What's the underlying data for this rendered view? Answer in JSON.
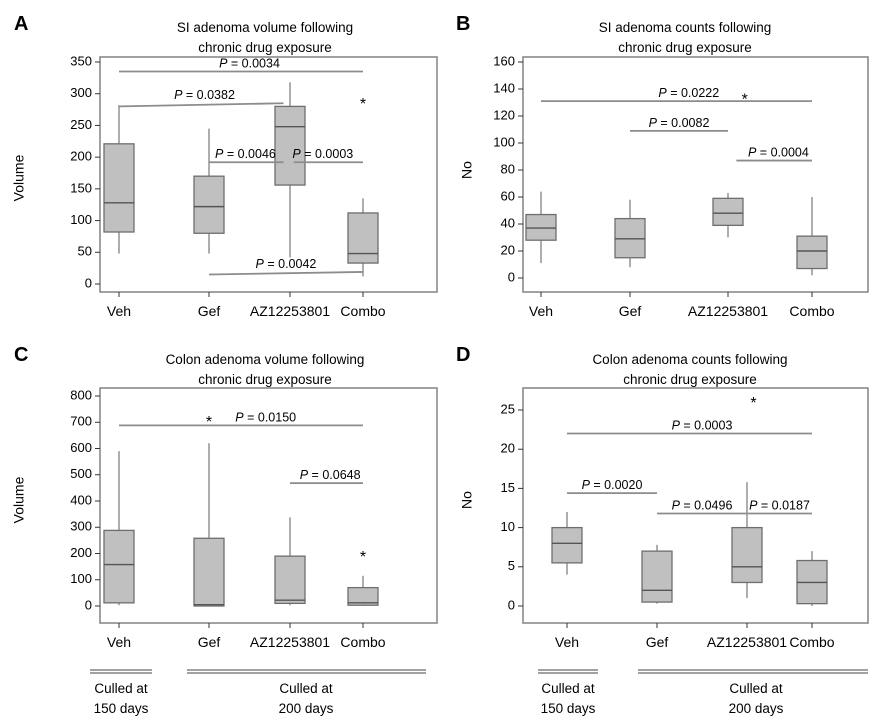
{
  "chart_data": [
    {
      "type": "box",
      "panel_label": "A",
      "title_lines": [
        "SI adenoma volume following",
        "chronic drug exposure"
      ],
      "ylabel": "Volume",
      "xlabel": "",
      "ylim": [
        0,
        350
      ],
      "yticks": [
        0,
        50,
        100,
        150,
        200,
        250,
        300,
        350
      ],
      "categories": [
        "Veh",
        "Gef",
        "AZ12253801",
        "Combo"
      ],
      "boxes": [
        {
          "min": 48,
          "q1": 82,
          "median": 128,
          "q3": 221,
          "max": 282
        },
        {
          "min": 48,
          "q1": 80,
          "median": 122,
          "q3": 170,
          "max": 245
        },
        {
          "min": 42,
          "q1": 156,
          "median": 248,
          "q3": 280,
          "max": 318
        },
        {
          "min": 12,
          "q1": 33,
          "median": 48,
          "q3": 112,
          "max": 135
        }
      ],
      "significance_lines": [
        {
          "from": 0,
          "to": 3,
          "y": 335,
          "label": "P = 0.0034",
          "label_at": 1.5
        },
        {
          "from": 0,
          "to": 1.92,
          "y": 280,
          "slant_to_y": 285,
          "label": "P = 0.0382",
          "label_at": 0.95
        },
        {
          "from": 1,
          "to": 1.92,
          "y": 192,
          "label": "P = 0.0046",
          "label_at": 1.45
        },
        {
          "from": 2.05,
          "to": 3,
          "y": 192,
          "label": "P = 0.0003",
          "label_at": 2.45
        },
        {
          "from": 1,
          "to": 3,
          "y": 15,
          "slant_to_y": 19,
          "label": "P = 0.0042",
          "label_at": 1.95
        }
      ],
      "asterisks": [
        {
          "at": 3,
          "y": 285
        }
      ]
    },
    {
      "type": "box",
      "panel_label": "B",
      "title_lines": [
        "SI adenoma counts following",
        "chronic drug exposure"
      ],
      "ylabel": "No",
      "xlabel": "",
      "ylim": [
        0,
        160
      ],
      "yticks": [
        0,
        20,
        40,
        60,
        80,
        100,
        120,
        140,
        160
      ],
      "categories": [
        "Veh",
        "Gef",
        "AZ12253801",
        "Combo"
      ],
      "boxes": [
        {
          "min": 11,
          "q1": 28,
          "median": 37,
          "q3": 47,
          "max": 64
        },
        {
          "min": 8,
          "q1": 15,
          "median": 29,
          "q3": 44,
          "max": 58
        },
        {
          "min": 30,
          "q1": 39,
          "median": 48,
          "q3": 59,
          "max": 63
        },
        {
          "min": 2,
          "q1": 7,
          "median": 20,
          "q3": 31,
          "max": 60
        }
      ],
      "significance_lines": [
        {
          "from": 0,
          "to": 3,
          "y": 131,
          "label": "P = 0.0222",
          "label_at": 1.6
        },
        {
          "from": 1,
          "to": 2,
          "y": 109,
          "label": "P = 0.0082",
          "label_at": 1.5
        },
        {
          "from": 2.1,
          "to": 3,
          "y": 87,
          "label": "P = 0.0004",
          "label_at": 2.6
        }
      ],
      "asterisks": [
        {
          "at": 2.2,
          "y": 133
        }
      ]
    },
    {
      "type": "box",
      "panel_label": "C",
      "title_lines": [
        "Colon adenoma volume following",
        "chronic drug exposure"
      ],
      "ylabel": "Volume",
      "xlabel": "",
      "ylim": [
        0,
        800
      ],
      "yticks": [
        0,
        100,
        200,
        300,
        400,
        500,
        600,
        700,
        800
      ],
      "categories": [
        "Veh",
        "Gef",
        "AZ12253801",
        "Combo"
      ],
      "boxes": [
        {
          "min": 3,
          "q1": 12,
          "median": 158,
          "q3": 288,
          "max": 590
        },
        {
          "min": 0,
          "q1": 0,
          "median": 5,
          "q3": 258,
          "max": 620
        },
        {
          "min": 3,
          "q1": 10,
          "median": 22,
          "q3": 190,
          "max": 338
        },
        {
          "min": 0,
          "q1": 3,
          "median": 12,
          "q3": 70,
          "max": 115
        }
      ],
      "significance_lines": [
        {
          "from": 0,
          "to": 3,
          "y": 688,
          "label": "P = 0.0150",
          "label_at": 1.7
        },
        {
          "from": 2,
          "to": 3,
          "y": 468,
          "label": "P = 0.0648",
          "label_at": 2.55
        }
      ],
      "asterisks": [
        {
          "at": 1,
          "y": 705
        },
        {
          "at": 3,
          "y": 190
        }
      ]
    },
    {
      "type": "box",
      "panel_label": "D",
      "title_lines": [
        "Colon adenoma counts following",
        "chronic drug exposure"
      ],
      "ylabel": "No",
      "xlabel": "",
      "ylim": [
        -1,
        27
      ],
      "yticks": [
        0,
        5,
        10,
        15,
        20,
        25
      ],
      "categories": [
        "Veh",
        "Gef",
        "AZ12253801",
        "Combo"
      ],
      "boxes": [
        {
          "min": 4,
          "q1": 5.5,
          "median": 8,
          "q3": 10,
          "max": 12
        },
        {
          "min": 0.3,
          "q1": 0.5,
          "median": 2,
          "q3": 7,
          "max": 7.8
        },
        {
          "min": 1,
          "q1": 3,
          "median": 5,
          "q3": 10,
          "max": 15.8
        },
        {
          "min": 0,
          "q1": 0.3,
          "median": 3,
          "q3": 5.8,
          "max": 7
        }
      ],
      "significance_lines": [
        {
          "from": 0,
          "to": 3,
          "y": 22,
          "label": "P = 0.0003",
          "label_at": 1.5
        },
        {
          "from": 0,
          "to": 1,
          "y": 14.4,
          "label": "P = 0.0020",
          "label_at": 0.5
        },
        {
          "from": 1,
          "to": 2,
          "y": 11.8,
          "label": "P = 0.0496",
          "label_at": 1.5
        },
        {
          "from": 2,
          "to": 3,
          "y": 11.8,
          "label": "P = 0.0187",
          "label_at": 2.5
        }
      ],
      "asterisks": [
        {
          "at": 2.1,
          "y": 26
        }
      ]
    }
  ],
  "groupings": {
    "left": {
      "veh_label": [
        "Culled at",
        "150 days"
      ],
      "rest_label": [
        "Culled at",
        "200 days"
      ]
    },
    "right": {
      "veh_label": [
        "Culled at",
        "150 days"
      ],
      "rest_label": [
        "Culled at",
        "200 days"
      ]
    }
  },
  "colors": {
    "box_fill": "#c0c0c0",
    "box_stroke": "#6e6e6e",
    "line": "#8c8c8c",
    "frame": "#8a8a8a",
    "axis": "#333333"
  }
}
